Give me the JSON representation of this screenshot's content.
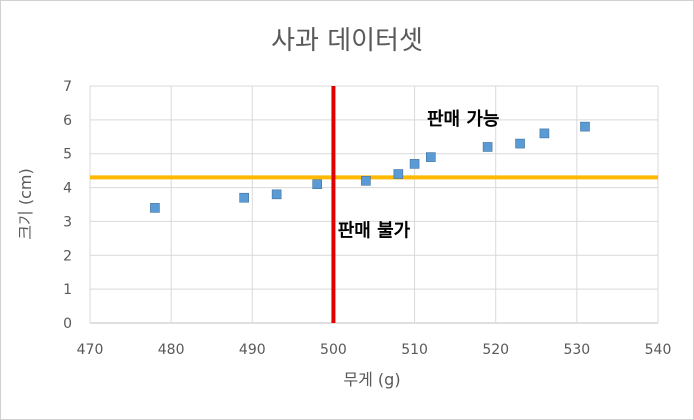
{
  "chart_data": {
    "type": "scatter",
    "title": "사과 데이터셋",
    "xlabel": "무게 (g)",
    "ylabel": "크기 (cm)",
    "xlim": [
      470,
      540
    ],
    "ylim": [
      0,
      7
    ],
    "x_ticks": [
      "470",
      "480",
      "490",
      "500",
      "510",
      "520",
      "530",
      "540"
    ],
    "y_ticks": [
      "0",
      "1",
      "2",
      "3",
      "4",
      "5",
      "6",
      "7"
    ],
    "grid": true,
    "legend": "none",
    "points": [
      {
        "x": 478,
        "y": 3.4
      },
      {
        "x": 489,
        "y": 3.7
      },
      {
        "x": 493,
        "y": 3.8
      },
      {
        "x": 498,
        "y": 4.1
      },
      {
        "x": 504,
        "y": 4.2
      },
      {
        "x": 508,
        "y": 4.4
      },
      {
        "x": 510,
        "y": 4.7
      },
      {
        "x": 512,
        "y": 4.9
      },
      {
        "x": 519,
        "y": 5.2
      },
      {
        "x": 523,
        "y": 5.3
      },
      {
        "x": 526,
        "y": 5.6
      },
      {
        "x": 531,
        "y": 5.8
      }
    ],
    "vertical_line": {
      "x": 500,
      "color": "#e00000"
    },
    "horizontal_line": {
      "y": 4.3,
      "color": "#ffb900"
    },
    "marker_color": "#5b9bd5",
    "annotations": [
      {
        "text": "판매 가능",
        "x": 516,
        "y": 5.85
      },
      {
        "text": "판매 불가",
        "x": 505,
        "y": 2.55
      }
    ]
  }
}
